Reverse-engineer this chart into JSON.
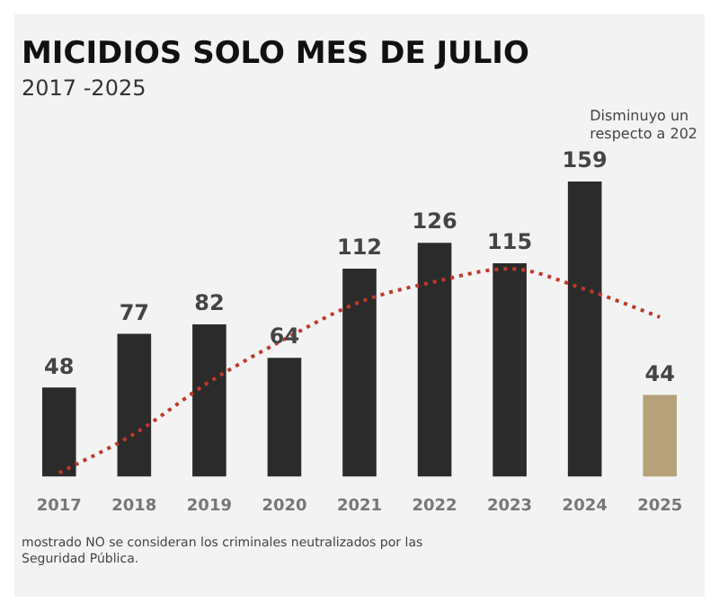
{
  "chart_data": {
    "type": "bar",
    "title": "MICIDIOS SOLO MES DE JULIO",
    "subtitle": "2017 -2025",
    "categories": [
      "2017",
      "2018",
      "2019",
      "2020",
      "2021",
      "2022",
      "2023",
      "2024",
      "2025"
    ],
    "series": [
      {
        "colors": [
          "#2b2b2b",
          "#2b2b2b",
          "#2b2b2b",
          "#2b2b2b",
          "#2b2b2b",
          "#2b2b2b",
          "#2b2b2b",
          "#2b2b2b",
          "#b5a27a"
        ],
        "values": [
          48,
          77,
          82,
          64,
          112,
          126,
          115,
          159,
          44
        ],
        "value_labels": [
          "48",
          "77",
          "82",
          "64",
          "112",
          "126",
          "115",
          "159",
          "44"
        ]
      },
      {
        "type": "line",
        "color": "#c0392b",
        "line_style": "dotted",
        "marker": "none",
        "values": [
          2,
          23,
          51,
          74,
          94,
          105,
          112,
          101,
          86
        ]
      }
    ],
    "grid": false,
    "legend": false,
    "tick_labels": "x",
    "annotations": [
      "Disminuyo un",
      "respecto a 202",
      "mostrado NO se consideran los criminales neutralizados por las",
      "Seguridad Pública."
    ]
  }
}
